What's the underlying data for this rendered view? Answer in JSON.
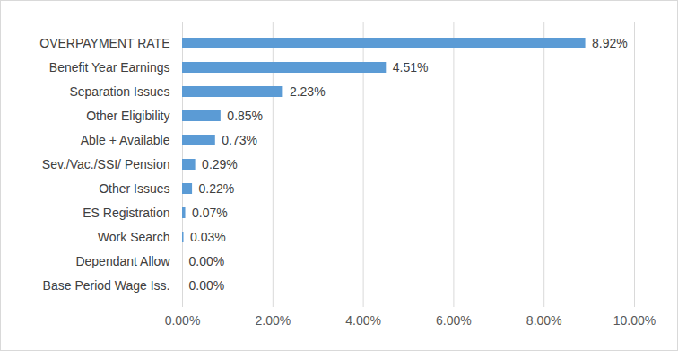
{
  "chart_data": {
    "type": "bar",
    "orientation": "horizontal",
    "categories": [
      "OVERPAYMENT RATE",
      "Benefit Year Earnings",
      "Separation Issues",
      "Other Eligibility",
      "Able + Available",
      "Sev./Vac./SSI/ Pension",
      "Other Issues",
      "ES Registration",
      "Work Search",
      "Dependant Allow",
      "Base Period Wage Iss."
    ],
    "values": [
      8.92,
      4.51,
      2.23,
      0.85,
      0.73,
      0.29,
      0.22,
      0.07,
      0.03,
      0.0,
      0.0
    ],
    "value_labels": [
      "8.92%",
      "4.51%",
      "2.23%",
      "0.85%",
      "0.73%",
      "0.29%",
      "0.22%",
      "0.07%",
      "0.03%",
      "0.00%",
      "0.00%"
    ],
    "data_labels": true,
    "color": "#5b9bd5",
    "xlim": [
      0,
      10
    ],
    "xticks": [
      {
        "value": 0,
        "label": "0.00%"
      },
      {
        "value": 2,
        "label": "2.00%"
      },
      {
        "value": 4,
        "label": "4.00%"
      },
      {
        "value": 6,
        "label": "6.00%"
      },
      {
        "value": 8,
        "label": "8.00%"
      },
      {
        "value": 10,
        "label": "10.00%"
      }
    ],
    "grid": true
  }
}
